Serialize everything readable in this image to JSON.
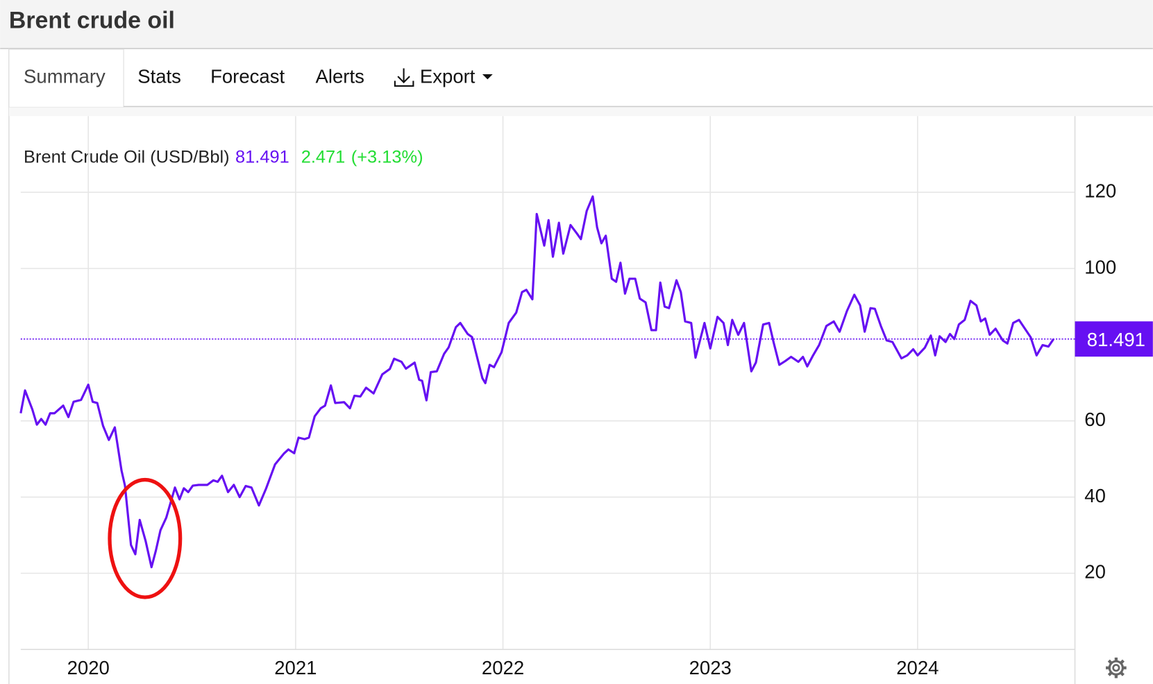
{
  "header": {
    "title": "Brent crude oil"
  },
  "tabs": [
    "Summary",
    "Stats",
    "Forecast",
    "Alerts",
    "Export"
  ],
  "chart_data": {
    "type": "line",
    "last_value": 81.491,
    "change": 2.471,
    "change_percent": {
      "value": 3.13,
      "label": "(+3.13%)"
    },
    "x": [
      2019.674,
      2019.695,
      2019.73,
      2019.752,
      2019.773,
      2019.794,
      2019.816,
      2019.837,
      2019.879,
      2019.904,
      2019.929,
      2019.965,
      2020.0,
      2020.021,
      2020.043,
      2020.071,
      2020.099,
      2020.128,
      2020.16,
      2020.177,
      2020.206,
      2020.227,
      2020.248,
      2020.277,
      2020.305,
      2020.326,
      2020.348,
      2020.376,
      2020.418,
      2020.44,
      2020.461,
      2020.482,
      2020.504,
      2020.532,
      2020.574,
      2020.603,
      2020.624,
      2020.645,
      2020.674,
      2020.702,
      2020.73,
      2020.759,
      2020.787,
      2020.823,
      2020.858,
      2020.901,
      2020.943,
      2020.965,
      2020.993,
      2021.014,
      2021.043,
      2021.064,
      2021.092,
      2021.121,
      2021.142,
      2021.17,
      2021.191,
      2021.234,
      2021.262,
      2021.284,
      2021.312,
      2021.34,
      2021.376,
      2021.418,
      2021.454,
      2021.475,
      2021.511,
      2021.532,
      2021.574,
      2021.596,
      2021.61,
      2021.631,
      2021.652,
      2021.681,
      2021.716,
      2021.738,
      2021.773,
      2021.794,
      2021.83,
      2021.851,
      2021.901,
      2021.915,
      2021.936,
      2021.957,
      2021.993,
      2022.028,
      2022.064,
      2022.092,
      2022.113,
      2022.142,
      2022.163,
      2022.199,
      2022.22,
      2022.241,
      2022.27,
      2022.291,
      2022.326,
      2022.355,
      2022.376,
      2022.404,
      2022.433,
      2022.454,
      2022.475,
      2022.496,
      2022.525,
      2022.546,
      2022.567,
      2022.589,
      2022.61,
      2022.638,
      2022.66,
      2022.688,
      2022.716,
      2022.738,
      2022.759,
      2022.78,
      2022.801,
      2022.837,
      2022.858,
      2022.879,
      2022.908,
      2022.929,
      2022.972,
      2023.0,
      2023.035,
      2023.064,
      2023.085,
      2023.106,
      2023.135,
      2023.163,
      2023.198,
      2023.22,
      2023.255,
      2023.284,
      2023.305,
      2023.333,
      2023.362,
      2023.39,
      2023.425,
      2023.447,
      2023.468,
      2023.496,
      2023.525,
      2023.56,
      2023.596,
      2023.624,
      2023.659,
      2023.695,
      2023.723,
      2023.745,
      2023.773,
      2023.794,
      2023.823,
      2023.851,
      2023.879,
      2023.922,
      2023.95,
      2023.979,
      2024.0,
      2024.035,
      2024.064,
      2024.085,
      2024.106,
      2024.135,
      2024.156,
      2024.177,
      2024.199,
      2024.227,
      2024.255,
      2024.284,
      2024.305,
      2024.326,
      2024.348,
      2024.376,
      2024.411,
      2024.433,
      2024.461,
      2024.489,
      2024.518,
      2024.546,
      2024.574,
      2024.603,
      2024.631,
      2024.656
    ],
    "series": [
      {
        "name": "Brent Crude Oil (USD/Bbl)",
        "color": "#6610f2",
        "values": [
          62,
          68,
          63,
          59,
          60.5,
          59,
          62,
          62,
          64,
          61,
          65,
          65.5,
          69.5,
          65,
          64.7,
          58.7,
          55,
          58.3,
          47,
          43,
          27.4,
          25,
          34,
          28.4,
          21.6,
          26,
          31.3,
          34.6,
          42.5,
          39.4,
          42.3,
          41.3,
          43,
          43.2,
          43.2,
          44.4,
          44,
          45.6,
          41.3,
          43.2,
          40,
          42.9,
          42.5,
          37.8,
          42.3,
          48.6,
          51.4,
          52.5,
          51.5,
          55.6,
          55.2,
          55.6,
          61.2,
          63.3,
          64,
          69.3,
          64.7,
          64.9,
          63.3,
          66.6,
          66.4,
          68.7,
          67.2,
          72.2,
          73.6,
          76.3,
          75.5,
          73.7,
          75.3,
          70.8,
          70.5,
          65.4,
          72.8,
          73,
          77.6,
          79.3,
          84.6,
          85.7,
          82.8,
          82,
          71.2,
          69.9,
          74.7,
          74.1,
          78,
          85.7,
          88.4,
          93.8,
          94.4,
          91.9,
          114.3,
          106,
          112.7,
          103.1,
          112,
          103.9,
          111.4,
          109.3,
          107.7,
          115.1,
          118.9,
          110.8,
          106.6,
          108.6,
          97.3,
          96.5,
          101.5,
          93.4,
          97.3,
          97.3,
          92.1,
          91.1,
          83.8,
          83.8,
          96.3,
          90,
          89.6,
          96.9,
          93.8,
          86.1,
          85.7,
          76.6,
          85.7,
          79,
          87.3,
          85.7,
          79.9,
          86.5,
          82.6,
          85.7,
          73,
          75.3,
          85.3,
          85.7,
          80.7,
          74.7,
          75.7,
          76.8,
          75.5,
          76.8,
          74.3,
          77.2,
          79.9,
          84.9,
          86.1,
          83.4,
          88.8,
          93.1,
          90.3,
          83.4,
          89.6,
          89.4,
          84.9,
          81.1,
          80.7,
          76.4,
          77.2,
          78.8,
          77.2,
          79.2,
          82.4,
          77.2,
          82.2,
          80.7,
          82.8,
          81.5,
          85.3,
          86.5,
          91.5,
          90.3,
          86.1,
          86.9,
          82.6,
          84.2,
          81.1,
          80.3,
          85.7,
          86.5,
          84.2,
          81.9,
          77.2,
          79.9,
          79.5,
          81.491
        ]
      }
    ],
    "xlim": [
      2019.674,
      2024.759
    ],
    "ylim": [
      0,
      140
    ],
    "xticks": [
      2020,
      2021,
      2022,
      2023,
      2024
    ],
    "yticks": [
      20,
      40,
      60,
      100,
      120
    ],
    "grid": true,
    "change_color": "#22dd33"
  }
}
